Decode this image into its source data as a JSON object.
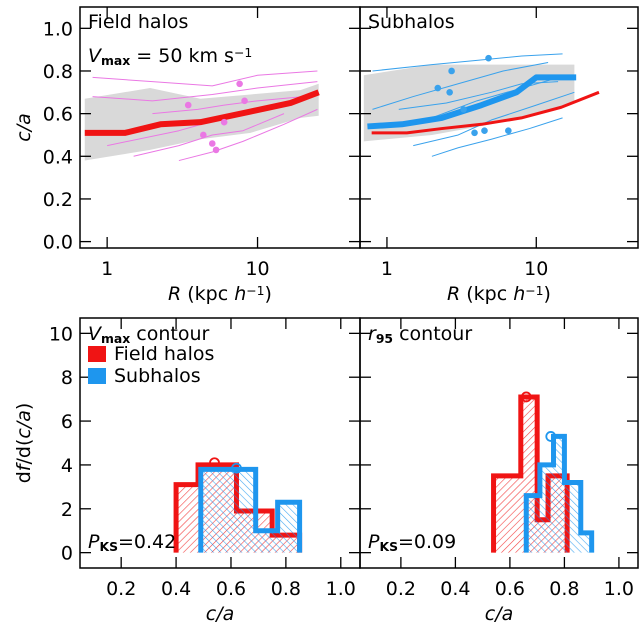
{
  "chart_data": [
    {
      "type": "line",
      "xlog": true,
      "xlim": [
        0.66,
        48
      ],
      "ylim": [
        -0.03,
        1.1
      ],
      "xticks": [
        1,
        10
      ],
      "yticks": [
        {
          "value": 0,
          "label": "0.0"
        },
        0.2,
        0.4,
        0.6,
        0.8,
        {
          "value": 1,
          "label": "1.0"
        }
      ],
      "xlabel": [
        {
          "text": "R",
          "style": "italic"
        },
        {
          "text": " (kpc "
        },
        {
          "text": "h",
          "style": "italic"
        },
        {
          "text": "−1",
          "style": "sup"
        },
        {
          "text": ")"
        }
      ],
      "ylabel": [
        {
          "text": "c/a",
          "style": "italic"
        }
      ],
      "annotations": [
        {
          "color": "#f01414",
          "parts": [
            {
              "text": "Field halos"
            }
          ]
        },
        {
          "color": "#000000",
          "parts": [
            {
              "text": "V",
              "style": "italic"
            },
            {
              "text": "max",
              "style": "sub"
            },
            {
              "text": " = 50 km s"
            },
            {
              "text": "−1",
              "style": "sup"
            }
          ]
        }
      ],
      "bands": [
        {
          "color": "#d9d9d9",
          "x": [
            0.71,
            1.93,
            4.17,
            8.98,
            19.3,
            25.5
          ],
          "lower": [
            0.38,
            0.43,
            0.48,
            0.51,
            0.58,
            0.59
          ],
          "upper": [
            0.67,
            0.72,
            0.67,
            0.69,
            0.71,
            0.74
          ]
        }
      ],
      "series": [
        {
          "color": "#ea78e4",
          "width": 1,
          "x": [
            0.8,
            2,
            5,
            10,
            25
          ],
          "values": [
            0.77,
            0.75,
            0.73,
            0.78,
            0.8
          ]
        },
        {
          "color": "#ea78e4",
          "width": 1,
          "x": [
            0.8,
            2,
            5,
            10,
            25
          ],
          "values": [
            0.68,
            0.66,
            0.69,
            0.72,
            0.75
          ]
        },
        {
          "color": "#ea78e4",
          "width": 1,
          "x": [
            1,
            3,
            6,
            12,
            20
          ],
          "values": [
            0.45,
            0.52,
            0.58,
            0.62,
            0.66
          ]
        },
        {
          "color": "#ea78e4",
          "width": 1,
          "x": [
            1.5,
            3,
            5,
            8,
            15
          ],
          "values": [
            0.4,
            0.45,
            0.5,
            0.52,
            0.6
          ]
        },
        {
          "color": "#ea78e4",
          "width": 1,
          "x": [
            2,
            4,
            6,
            10,
            20
          ],
          "values": [
            0.6,
            0.62,
            0.64,
            0.66,
            0.68
          ]
        },
        {
          "color": "#ea78e4",
          "width": 1,
          "x": [
            3,
            5,
            8,
            15,
            25
          ],
          "values": [
            0.38,
            0.42,
            0.47,
            0.55,
            0.62
          ]
        },
        {
          "color": "#f01414",
          "width": 6,
          "x": [
            0.71,
            1.32,
            2.26,
            4.17,
            8.98,
            16.6,
            25.5
          ],
          "values": [
            0.51,
            0.51,
            0.55,
            0.56,
            0.61,
            0.65,
            0.7
          ]
        }
      ],
      "points": {
        "color": "#ea78e4",
        "x": [
          7.6,
          3.46,
          8.2,
          4.36,
          5.0,
          5.3,
          6.0
        ],
        "values": [
          0.74,
          0.64,
          0.66,
          0.5,
          0.46,
          0.43,
          0.56
        ]
      }
    },
    {
      "type": "line",
      "xlog": true,
      "xlim": [
        0.66,
        48
      ],
      "ylim": [
        -0.03,
        1.1
      ],
      "show_ytick_labels": false,
      "xticks": [
        1,
        10
      ],
      "yticks": [
        0,
        0.2,
        0.4,
        0.6,
        0.8,
        1
      ],
      "xlabel": [
        {
          "text": "R",
          "style": "italic"
        },
        {
          "text": " (kpc "
        },
        {
          "text": "h",
          "style": "italic"
        },
        {
          "text": "−1",
          "style": "sup"
        },
        {
          "text": ")"
        }
      ],
      "annotations": [
        {
          "color": "#1e96ee",
          "parts": [
            {
              "text": "Subhalos"
            }
          ]
        }
      ],
      "bands": [
        {
          "color": "#d9d9d9",
          "x": [
            0.7,
            2,
            5,
            10,
            18
          ],
          "lower": [
            0.47,
            0.5,
            0.55,
            0.6,
            0.65
          ],
          "upper": [
            0.78,
            0.83,
            0.83,
            0.83,
            0.83
          ]
        }
      ],
      "series": [
        {
          "color": "#3aa2ec",
          "width": 1,
          "x": [
            0.8,
            2,
            4,
            8,
            15
          ],
          "values": [
            0.8,
            0.83,
            0.85,
            0.87,
            0.88
          ]
        },
        {
          "color": "#3aa2ec",
          "width": 1,
          "x": [
            0.8,
            1.5,
            3,
            6,
            12
          ],
          "values": [
            0.62,
            0.68,
            0.74,
            0.8,
            0.84
          ]
        },
        {
          "color": "#3aa2ec",
          "width": 1,
          "x": [
            1,
            2,
            4,
            8,
            16
          ],
          "values": [
            0.55,
            0.58,
            0.66,
            0.72,
            0.78
          ]
        },
        {
          "color": "#3aa2ec",
          "width": 1,
          "x": [
            1.5,
            3,
            5,
            10,
            18
          ],
          "values": [
            0.45,
            0.5,
            0.57,
            0.64,
            0.7
          ]
        },
        {
          "color": "#3aa2ec",
          "width": 1,
          "x": [
            2,
            3,
            5,
            9,
            15
          ],
          "values": [
            0.4,
            0.44,
            0.48,
            0.53,
            0.58
          ]
        },
        {
          "color": "#3aa2ec",
          "width": 1,
          "x": [
            1.2,
            2.5,
            5,
            8,
            14
          ],
          "values": [
            0.62,
            0.65,
            0.7,
            0.74,
            0.75
          ]
        },
        {
          "color": "#f01414",
          "width": 3,
          "x": [
            0.79,
            1.36,
            2.33,
            4.3,
            7.94,
            14.7,
            26.3
          ],
          "values": [
            0.51,
            0.51,
            0.53,
            0.55,
            0.58,
            0.63,
            0.7
          ]
        },
        {
          "color": "#1e96ee",
          "width": 6,
          "x": [
            0.74,
            1.26,
            2.33,
            4.3,
            7.36,
            10,
            13.6,
            18.5
          ],
          "values": [
            0.54,
            0.55,
            0.58,
            0.64,
            0.7,
            0.77,
            0.77,
            0.77
          ]
        }
      ],
      "points": {
        "color": "#3aa2ec",
        "x": [
          2.71,
          4.79,
          2.19,
          2.63,
          3.26,
          3.86,
          4.5,
          6.5
        ],
        "values": [
          0.8,
          0.86,
          0.72,
          0.7,
          0.62,
          0.51,
          0.52,
          0.52
        ]
      }
    },
    {
      "type": "histogram",
      "xlim": [
        0.05,
        1.07
      ],
      "ylim": [
        -0.7,
        10.7
      ],
      "xticks": [
        0.2,
        0.4,
        0.6,
        0.8,
        {
          "value": 1,
          "label": "1.0"
        }
      ],
      "yticks": [
        0,
        2,
        4,
        6,
        8,
        10
      ],
      "xlabel": [
        {
          "text": "c/a",
          "style": "italic"
        }
      ],
      "ylabel": [
        {
          "text": "d"
        },
        {
          "text": "f",
          "style": "italic"
        },
        {
          "text": "/d("
        },
        {
          "text": "c/a",
          "style": "italic"
        },
        {
          "text": ")"
        }
      ],
      "annotations": [
        {
          "color": "#000000",
          "parts": [
            {
              "text": "V",
              "style": "italic"
            },
            {
              "text": "max",
              "style": "sub"
            },
            {
              "text": " contour"
            }
          ]
        },
        {
          "color": "#000000",
          "parts": [
            {
              "text": "P",
              "style": "italic"
            },
            {
              "text": "KS",
              "style": "sub"
            },
            {
              "text": "=0.42"
            }
          ]
        }
      ],
      "legend": true,
      "series": [
        {
          "name": "Field halos",
          "color": "#f01414",
          "bins": [
            0.4,
            0.48,
            0.62,
            0.75,
            0.85
          ],
          "values": [
            3.1,
            4.0,
            1.9,
            0.8
          ],
          "peak_x": 0.54,
          "peak": 4.1
        },
        {
          "name": "Subhalos",
          "color": "#1e96ee",
          "bins": [
            0.49,
            0.69,
            0.77,
            0.85
          ],
          "values": [
            3.8,
            1.0,
            2.3
          ],
          "peak_x": 0.62,
          "peak": 3.85
        }
      ]
    },
    {
      "type": "histogram",
      "xlim": [
        0.05,
        1.07
      ],
      "ylim": [
        -0.7,
        10.7
      ],
      "show_ytick_labels": false,
      "xticks": [
        0.2,
        0.4,
        0.6,
        0.8,
        {
          "value": 1,
          "label": "1.0"
        }
      ],
      "yticks": [
        0,
        2,
        4,
        6,
        8,
        10
      ],
      "xlabel": [
        {
          "text": "c/a",
          "style": "italic"
        }
      ],
      "annotations": [
        {
          "color": "#000000",
          "parts": [
            {
              "text": "r",
              "style": "italic"
            },
            {
              "text": "95",
              "style": "sub"
            },
            {
              "text": " contour"
            }
          ]
        },
        {
          "color": "#000000",
          "parts": [
            {
              "text": "P",
              "style": "italic"
            },
            {
              "text": "KS",
              "style": "sub"
            },
            {
              "text": "=0.09"
            }
          ]
        }
      ],
      "series": [
        {
          "color": "#f01414",
          "bins": [
            0.54,
            0.64,
            0.7,
            0.74,
            0.81
          ],
          "values": [
            3.5,
            7.1,
            1.5,
            3.5
          ],
          "peak_x": 0.66,
          "peak": 7.1
        },
        {
          "color": "#1e96ee",
          "bins": [
            0.66,
            0.71,
            0.76,
            0.8,
            0.86,
            0.9
          ],
          "values": [
            2.6,
            4.0,
            5.3,
            3.2,
            0.9
          ],
          "peak_x": 0.75,
          "peak": 5.3
        }
      ]
    }
  ]
}
